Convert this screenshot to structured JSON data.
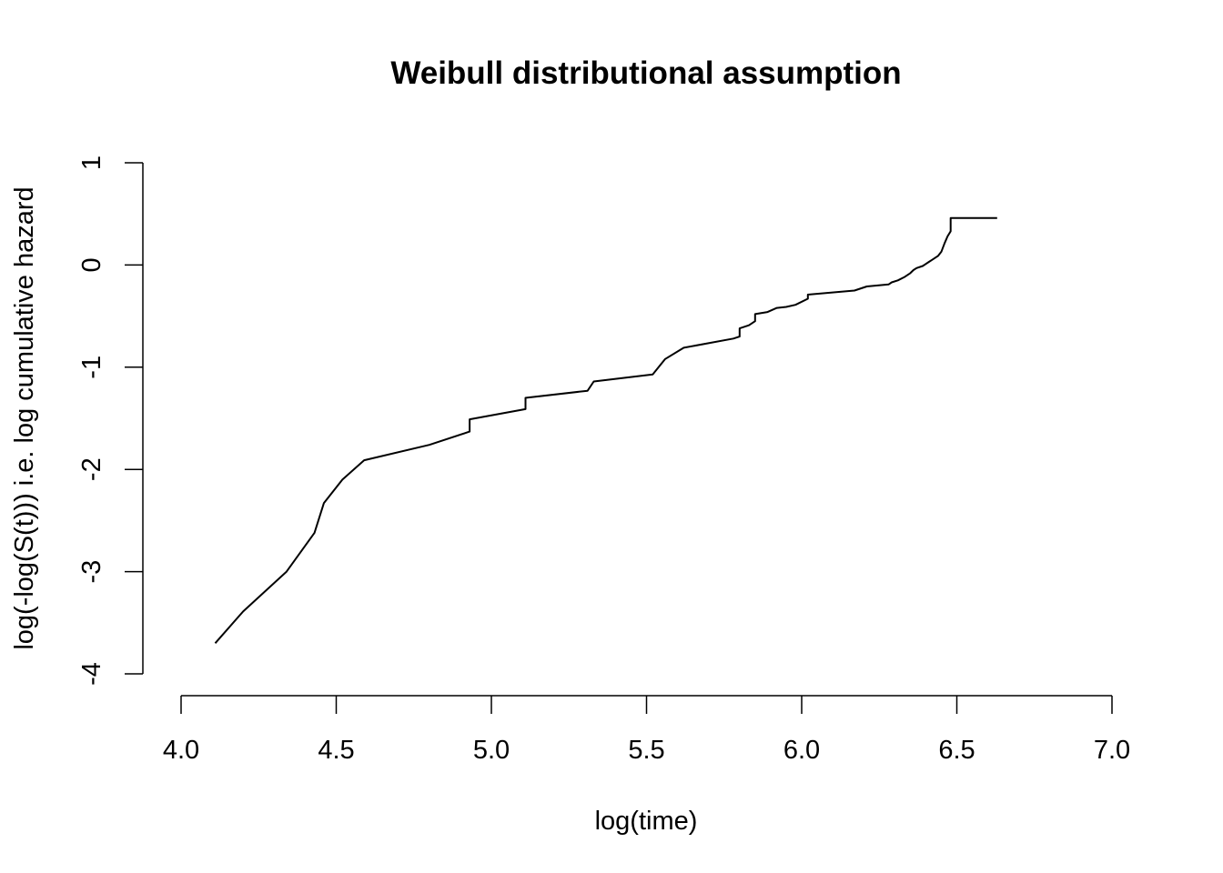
{
  "chart_data": {
    "type": "line",
    "title": "Weibull distributional assumption",
    "xlabel": "log(time)",
    "ylabel": "log(-log(S(t))) i.e. log cumulative hazard",
    "xlim": [
      4.0,
      7.0
    ],
    "ylim": [
      -4,
      1
    ],
    "x_ticks": [
      4.0,
      4.5,
      5.0,
      5.5,
      6.0,
      6.5,
      7.0
    ],
    "x_tick_labels": [
      "4.0",
      "4.5",
      "5.0",
      "5.5",
      "6.0",
      "6.5",
      "7.0"
    ],
    "y_ticks": [
      -4,
      -3,
      -2,
      -1,
      0,
      1
    ],
    "y_tick_labels": [
      "-4",
      "-3",
      "-2",
      "-1",
      "0",
      "1"
    ],
    "grid": false,
    "line_color": "#000000",
    "series": [
      {
        "x": [
          4.11,
          4.2,
          4.34,
          4.43,
          4.46,
          4.52,
          4.59,
          4.8,
          4.93,
          4.93,
          5.11,
          5.11,
          5.31,
          5.33,
          5.52,
          5.56,
          5.62,
          5.78,
          5.8,
          5.8,
          5.83,
          5.85,
          5.85,
          5.89,
          5.92,
          5.95,
          5.98,
          6.02,
          6.02,
          6.17,
          6.21,
          6.28,
          6.29,
          6.31,
          6.33,
          6.35,
          6.36,
          6.37,
          6.39,
          6.41,
          6.42,
          6.44,
          6.45,
          6.46,
          6.47,
          6.48,
          6.48,
          6.5,
          6.56,
          6.63
        ],
        "y": [
          -3.7,
          -3.39,
          -3.0,
          -2.62,
          -2.33,
          -2.1,
          -1.91,
          -1.76,
          -1.63,
          -1.51,
          -1.41,
          -1.3,
          -1.23,
          -1.14,
          -1.07,
          -0.92,
          -0.81,
          -0.72,
          -0.7,
          -0.62,
          -0.59,
          -0.55,
          -0.48,
          -0.46,
          -0.42,
          -0.41,
          -0.39,
          -0.33,
          -0.29,
          -0.25,
          -0.21,
          -0.19,
          -0.17,
          -0.15,
          -0.12,
          -0.08,
          -0.05,
          -0.03,
          -0.01,
          0.03,
          0.05,
          0.09,
          0.13,
          0.21,
          0.28,
          0.33,
          0.46,
          0.46,
          0.46,
          0.46
        ]
      }
    ]
  }
}
